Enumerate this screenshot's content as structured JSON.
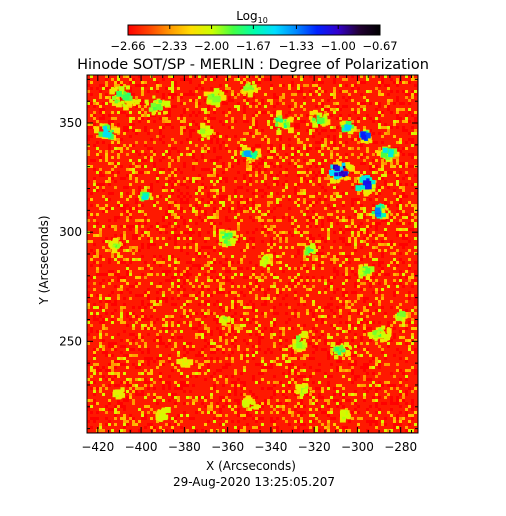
{
  "chart_data": {
    "type": "heatmap",
    "title": "Hinode SOT/SP - MERLIN : Degree of Polarization",
    "xlabel": "X (Arcseconds)",
    "ylabel": "Y (Arcseconds)",
    "date_label": "29-Aug-2020 13:25:05.207",
    "xlim": [
      -425,
      -272
    ],
    "ylim": [
      208,
      372
    ],
    "x_ticks": [
      -420,
      -400,
      -380,
      -360,
      -340,
      -320,
      -300,
      -280
    ],
    "x_tick_labels": [
      "−420",
      "−400",
      "−380",
      "−360",
      "−340",
      "−320",
      "−300",
      "−280"
    ],
    "y_ticks": [
      250,
      300,
      350
    ],
    "y_tick_labels": [
      "250",
      "300",
      "350"
    ],
    "colorbar": {
      "title": "Log",
      "title_subscript": "10",
      "range": [
        -2.66,
        -0.67
      ],
      "tick_labels": [
        "−2.66",
        "−2.33",
        "−2.00",
        "−1.67",
        "−1.33",
        "−1.00",
        "−0.67"
      ],
      "ticks": [
        -2.66,
        -2.33,
        -2.0,
        -1.67,
        -1.33,
        -1.0,
        -0.67
      ],
      "colors": [
        "#ff0000",
        "#ff4400",
        "#ff9900",
        "#ffdd00",
        "#ccff00",
        "#44ff44",
        "#00ffaa",
        "#00ddff",
        "#0088ff",
        "#0022ff",
        "#3300cc",
        "#220033",
        "#000000"
      ]
    },
    "background_value": -2.6,
    "enhancements": [
      {
        "x": -408,
        "y": 362,
        "r": 7,
        "v": -1.8
      },
      {
        "x": -392,
        "y": 358,
        "r": 6,
        "v": -1.9
      },
      {
        "x": -366,
        "y": 362,
        "r": 5,
        "v": -1.9
      },
      {
        "x": -350,
        "y": 366,
        "r": 4,
        "v": -1.9
      },
      {
        "x": -416,
        "y": 346,
        "r": 5,
        "v": -1.5
      },
      {
        "x": -398,
        "y": 316,
        "r": 3,
        "v": -1.6
      },
      {
        "x": -412,
        "y": 294,
        "r": 3,
        "v": -1.9
      },
      {
        "x": -370,
        "y": 346,
        "r": 4,
        "v": -2.0
      },
      {
        "x": -350,
        "y": 336,
        "r": 5,
        "v": -1.4
      },
      {
        "x": -335,
        "y": 350,
        "r": 6,
        "v": -1.8
      },
      {
        "x": -318,
        "y": 352,
        "r": 5,
        "v": -1.8
      },
      {
        "x": -308,
        "y": 328,
        "r": 7,
        "v": -1.0
      },
      {
        "x": -296,
        "y": 322,
        "r": 6,
        "v": -1.1
      },
      {
        "x": -290,
        "y": 310,
        "r": 5,
        "v": -1.3
      },
      {
        "x": -286,
        "y": 336,
        "r": 5,
        "v": -1.6
      },
      {
        "x": -305,
        "y": 348,
        "r": 4,
        "v": -1.5
      },
      {
        "x": -296,
        "y": 344,
        "r": 4,
        "v": -1.2
      },
      {
        "x": -360,
        "y": 297,
        "r": 5,
        "v": -1.8
      },
      {
        "x": -342,
        "y": 287,
        "r": 4,
        "v": -2.0
      },
      {
        "x": -322,
        "y": 292,
        "r": 4,
        "v": -1.8
      },
      {
        "x": -296,
        "y": 282,
        "r": 4,
        "v": -1.9
      },
      {
        "x": -362,
        "y": 260,
        "r": 3,
        "v": -2.0
      },
      {
        "x": -326,
        "y": 250,
        "r": 6,
        "v": -1.9
      },
      {
        "x": -308,
        "y": 246,
        "r": 5,
        "v": -1.8
      },
      {
        "x": -290,
        "y": 254,
        "r": 5,
        "v": -1.9
      },
      {
        "x": -280,
        "y": 262,
        "r": 3,
        "v": -1.9
      },
      {
        "x": -325,
        "y": 228,
        "r": 4,
        "v": -2.0
      },
      {
        "x": -350,
        "y": 221,
        "r": 4,
        "v": -2.0
      },
      {
        "x": -390,
        "y": 216,
        "r": 4,
        "v": -2.1
      },
      {
        "x": -410,
        "y": 226,
        "r": 3,
        "v": -2.0
      },
      {
        "x": -380,
        "y": 240,
        "r": 3,
        "v": -2.1
      },
      {
        "x": -306,
        "y": 216,
        "r": 3,
        "v": -2.0
      }
    ]
  }
}
